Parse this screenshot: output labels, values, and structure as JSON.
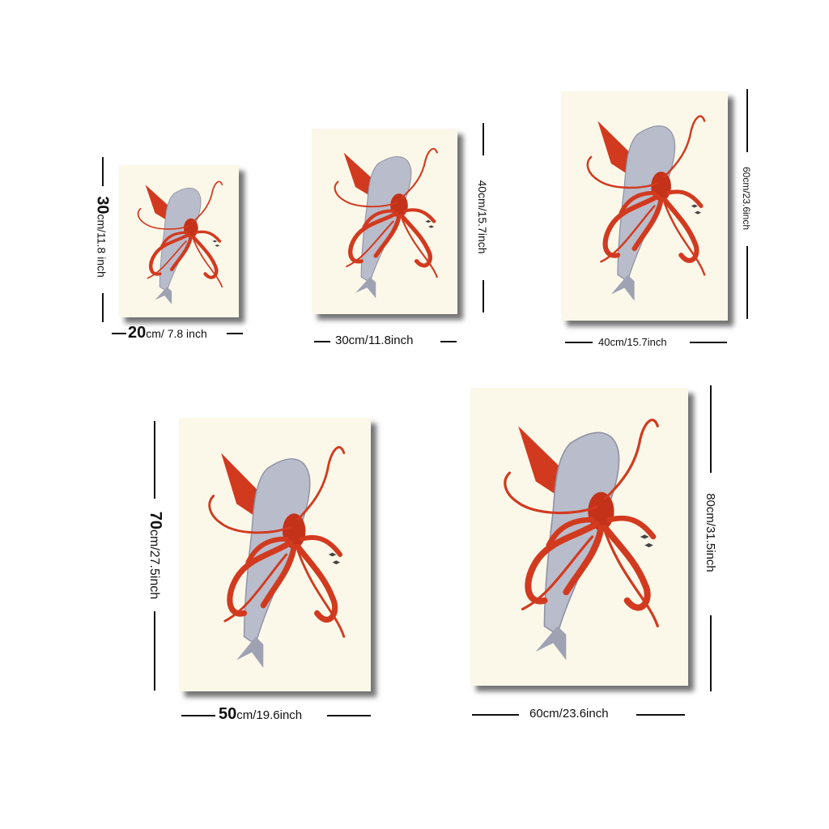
{
  "colors": {
    "canvas": "#fbf8e9",
    "squid": "#d23a1f",
    "whale": "#b9bccb"
  },
  "art": {
    "subject": "whale-and-squid-illustration"
  },
  "sizes": [
    {
      "id": "20x30",
      "w_main": "20",
      "w_rest": "cm/ 7.8 inch",
      "h_main": "30",
      "h_rest": "cm/11.8 inch"
    },
    {
      "id": "30x40",
      "w_main": "",
      "w_rest": "30cm/11.8inch",
      "h_main": "",
      "h_rest": "40cm/15.7inch"
    },
    {
      "id": "40x60",
      "w_main": "",
      "w_rest": "40cm/15.7inch",
      "h_main": "",
      "h_rest": "60cm/23.6inch"
    },
    {
      "id": "50x70",
      "w_main": "50",
      "w_rest": "cm/19.6inch",
      "h_main": "70",
      "h_rest": "cm/27.5inch"
    },
    {
      "id": "60x80",
      "w_main": "",
      "w_rest": "60cm/23.6inch",
      "h_main": "",
      "h_rest": "80cm/31.5inch"
    }
  ]
}
